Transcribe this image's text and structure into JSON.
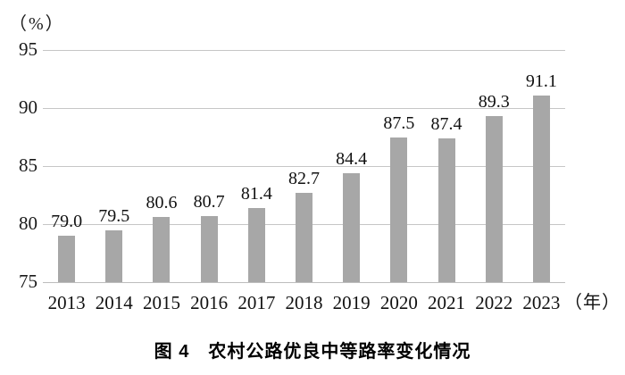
{
  "caption": "图 4　农村公路优良中等路率变化情况",
  "chart_data": {
    "type": "bar",
    "title": "图 4 农村公路优良中等路率变化情况",
    "categories": [
      "2013",
      "2014",
      "2015",
      "2016",
      "2017",
      "2018",
      "2019",
      "2020",
      "2021",
      "2022",
      "2023"
    ],
    "values": [
      79.0,
      79.5,
      80.6,
      80.7,
      81.4,
      82.7,
      84.4,
      87.5,
      87.4,
      89.3,
      91.1
    ],
    "value_labels": [
      "79.0",
      "79.5",
      "80.6",
      "80.7",
      "81.4",
      "82.7",
      "84.4",
      "87.5",
      "87.4",
      "89.3",
      "91.1"
    ],
    "ylabel": "（%）",
    "xlabel": "（年）",
    "ylim": [
      75,
      95
    ],
    "yticks": [
      95,
      90,
      85,
      80,
      75
    ],
    "grid": true,
    "legend": "none",
    "bar_color": "#a7a7a7",
    "gridline_color": "#c6c6c6"
  }
}
